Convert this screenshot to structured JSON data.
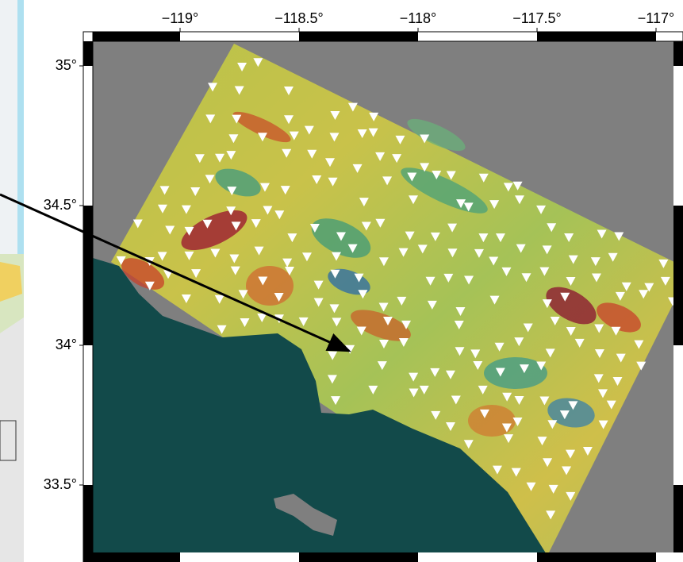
{
  "map": {
    "xlim": [
      -119.4,
      -116.88
    ],
    "ylim": [
      33.22,
      35.12
    ],
    "xticks": [
      {
        "value": -119,
        "label": "−119°"
      },
      {
        "value": -118.5,
        "label": "−118.5°"
      },
      {
        "value": -118,
        "label": "−118°"
      },
      {
        "value": -117.5,
        "label": "−117.5°"
      },
      {
        "value": -117,
        "label": "−117°"
      }
    ],
    "yticks": [
      {
        "value": 35,
        "label": "35°"
      },
      {
        "value": 34.5,
        "label": "34.5°"
      },
      {
        "value": 34,
        "label": "34°"
      },
      {
        "value": 33.5,
        "label": "33.5°"
      }
    ]
  }
}
